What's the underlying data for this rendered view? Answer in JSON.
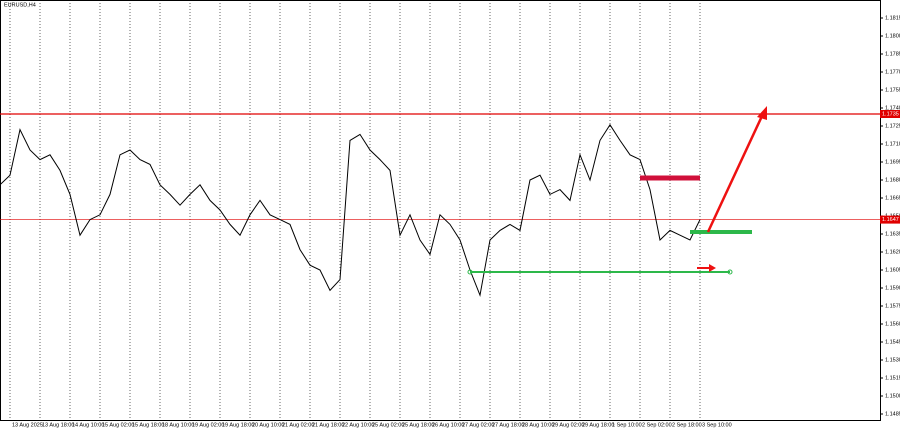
{
  "chart_data": {
    "type": "line",
    "title": "EURUSD,H4",
    "categories": [
      null,
      "13 Aug 2025",
      null,
      null,
      "13 Aug 18:00",
      null,
      null,
      "14 Aug 10:00",
      null,
      null,
      "15 Aug 02:00",
      null,
      null,
      "15 Aug 18:00",
      null,
      null,
      "18 Aug 10:00",
      null,
      null,
      "19 Aug 02:00",
      null,
      null,
      "19 Aug 18:00",
      null,
      null,
      "20 Aug 10:00",
      null,
      null,
      "21 Aug 02:00",
      null,
      null,
      "21 Aug 18:00",
      null,
      null,
      "22 Aug 10:00",
      null,
      null,
      "25 Aug 02:00",
      null,
      null,
      "25 Aug 18:00",
      null,
      null,
      "26 Aug 10:00",
      null,
      null,
      "27 Aug 02:00",
      null,
      null,
      "27 Aug 18:00",
      null,
      null,
      "28 Aug 10:00",
      null,
      null,
      "29 Aug 02:00",
      null,
      null,
      "29 Aug 18:00",
      null,
      null,
      "1 Sep 10:00",
      null,
      null,
      "2 Sep 02:00",
      null,
      null,
      "2 Sep 18:00",
      null,
      null,
      "3 Sep 10:00"
    ],
    "series": [
      {
        "name": "EURUSD",
        "color": "#000000",
        "values": [
          1.1676,
          1.1684,
          1.1722,
          1.1705,
          1.1697,
          1.1701,
          1.1688,
          1.1668,
          1.1634,
          1.1647,
          1.1651,
          1.1668,
          1.1701,
          1.1705,
          1.1697,
          1.1693,
          1.1676,
          1.1668,
          1.1659,
          1.1668,
          1.1676,
          1.1663,
          1.1655,
          1.1643,
          1.1634,
          1.1651,
          1.1663,
          1.1651,
          1.1647,
          1.1643,
          1.1622,
          1.1609,
          1.1605,
          1.1588,
          1.1597,
          1.1713,
          1.1718,
          1.1705,
          1.1697,
          1.1688,
          1.1634,
          1.1651,
          1.163,
          1.1618,
          1.1651,
          1.1643,
          1.163,
          1.1605,
          1.1584,
          1.163,
          1.1638,
          1.1643,
          1.1638,
          1.168,
          1.1684,
          1.1668,
          1.1672,
          1.1663,
          1.1701,
          1.168,
          1.1713,
          1.1726,
          1.1713,
          1.1701,
          1.1697,
          1.1672,
          1.163,
          1.1638,
          1.1634,
          1.163,
          1.1647
        ]
      }
    ],
    "ylim": [
      1.148,
      1.183
    ],
    "yticks": [
      1.1485,
      {
        "value": 1.15,
        "label": "1.1500"
      },
      1.1515,
      {
        "value": 1.153,
        "label": "1.1530"
      },
      1.1545,
      {
        "value": 1.156,
        "label": "1.1560"
      },
      1.1575,
      {
        "value": 1.159,
        "label": "1.1590"
      },
      1.1605,
      {
        "value": 1.162,
        "label": "1.1620"
      },
      1.1635,
      {
        "value": 1.165,
        "label": "1.1650"
      },
      1.1665,
      {
        "value": 1.168,
        "label": "1.1680"
      },
      1.1695,
      {
        "value": 1.171,
        "label": "1.1710"
      },
      1.1725,
      {
        "value": 1.174,
        "label": "1.1740"
      },
      1.1755,
      {
        "value": 1.177,
        "label": "1.1770"
      },
      1.1785,
      {
        "value": 1.18,
        "label": "1.1800"
      },
      1.1815
    ],
    "levels": [
      {
        "value": 1.1735,
        "label": "1.1735",
        "color": "#e00000"
      },
      {
        "value": 1.1647,
        "label": "1.1647",
        "color": "#e00000"
      }
    ],
    "grid": true
  }
}
